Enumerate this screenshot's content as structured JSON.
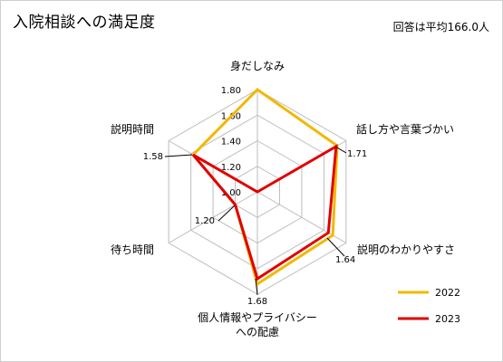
{
  "title": "入院相談への満足度",
  "respondents_note": "回答は平均166.0人",
  "chart_data": {
    "type": "radar",
    "axes": [
      "身だしなみ",
      "話し方や言葉づかい",
      "説明のわかりやすさ",
      "個人情報やプライバシーへの配慮",
      "待ち時間",
      "説明時間"
    ],
    "axis_labels": [
      [
        "身だしなみ"
      ],
      [
        "話し方や言葉づかい"
      ],
      [
        "説明のわかりやすさ"
      ],
      [
        "個人情報やプライバシー",
        "への配慮"
      ],
      [
        "待ち時間"
      ],
      [
        "説明時間"
      ]
    ],
    "range": [
      1.0,
      1.8
    ],
    "ticks": [
      "1.00",
      "1.20",
      "1.40",
      "1.60",
      "1.80"
    ],
    "series": [
      {
        "name": "2022",
        "color": "#F2B800",
        "values": [
          1.8,
          1.72,
          1.68,
          1.72,
          1.2,
          1.58
        ]
      },
      {
        "name": "2023",
        "color": "#E00000",
        "values": [
          1.0,
          1.71,
          1.64,
          1.68,
          1.2,
          1.58
        ]
      }
    ],
    "data_labels": [
      {
        "text": "1.71",
        "axis": 1
      },
      {
        "text": "1.64",
        "axis": 2
      },
      {
        "text": "1.68",
        "axis": 3
      },
      {
        "text": "1.20",
        "axis": 4
      },
      {
        "text": "1.58",
        "axis": 5
      }
    ],
    "legend_position": "bottom-right"
  }
}
